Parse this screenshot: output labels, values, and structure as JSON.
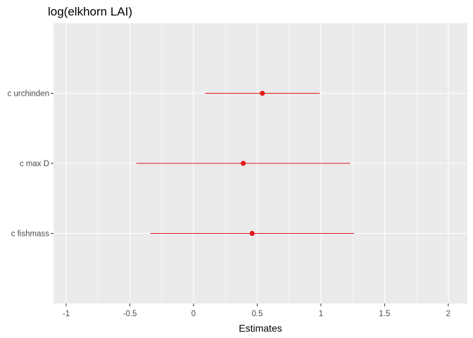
{
  "chart_data": {
    "type": "forest",
    "title": "log(elkhorn LAI)",
    "xlabel": "Estimates",
    "ylabel": "",
    "xlim": [
      -1.1,
      2.15
    ],
    "xticks": [
      -1,
      -0.5,
      0,
      0.5,
      1,
      1.5,
      2
    ],
    "xtick_labels": [
      "-1",
      "-0.5",
      "0",
      "0.5",
      "1",
      "1.5",
      "2"
    ],
    "grid": true,
    "legend": "none",
    "terms": [
      {
        "label": "c fishmass",
        "estimate": 0.46,
        "ci_low": -0.34,
        "ci_high": 1.26
      },
      {
        "label": "c max D",
        "estimate": 0.39,
        "ci_low": -0.45,
        "ci_high": 1.23
      },
      {
        "label": "c urchinden",
        "estimate": 0.54,
        "ci_low": 0.09,
        "ci_high": 0.99
      }
    ],
    "colors": {
      "point": "#e31a1c",
      "panel_bg": "#ebebeb",
      "grid": "#ffffff"
    }
  }
}
